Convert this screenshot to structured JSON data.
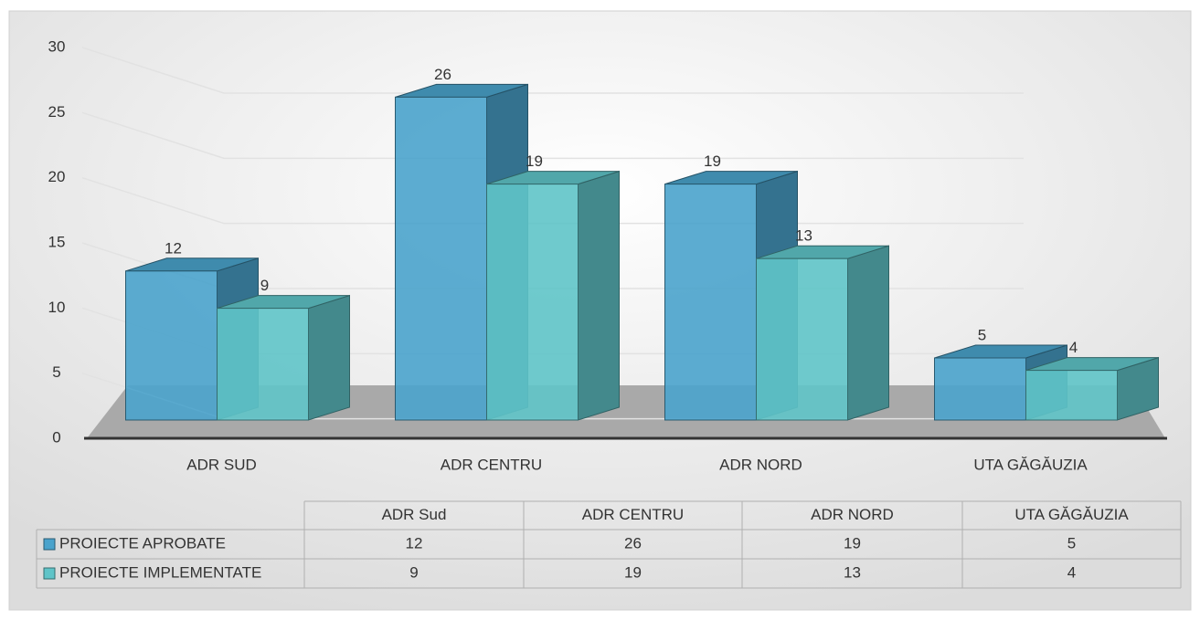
{
  "chart_data": {
    "type": "bar",
    "categories": [
      "ADR SUD",
      "ADR CENTRU",
      "ADR NORD",
      "UTA GĂGĂUZIA"
    ],
    "series": [
      {
        "name": "PROIECTE APROBATE",
        "color": "#4aa3cc",
        "values": [
          12,
          26,
          19,
          5
        ]
      },
      {
        "name": "PROIECTE IMPLEMENTATE",
        "color": "#5fc4c8",
        "values": [
          9,
          19,
          13,
          4
        ]
      }
    ],
    "ylim": [
      0,
      30
    ],
    "yticks": [
      0,
      5,
      10,
      15,
      20,
      25,
      30
    ],
    "grid": true,
    "table_headers": [
      "ADR Sud",
      "ADR CENTRU",
      "ADR NORD",
      "UTA GĂGĂUZIA"
    ]
  }
}
